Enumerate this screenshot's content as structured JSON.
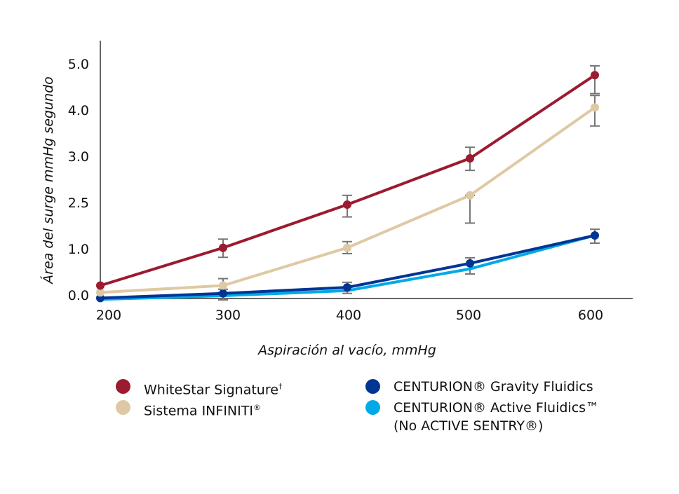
{
  "chart_data": {
    "type": "line",
    "xlabel": "Aspiración al vacío, mmHg",
    "ylabel": "Área del surge mmHg segundo",
    "x": [
      200,
      300,
      400,
      500,
      600
    ],
    "x_ticks": [
      "200",
      "300",
      "400",
      "500",
      "600"
    ],
    "y_ticks": [
      {
        "label": "0.0",
        "value": 0.0
      },
      {
        "label": "1.0",
        "value": 1.0
      },
      {
        "label": "2.5",
        "value": 2.5
      },
      {
        "label": "3.0",
        "value": 3.0
      },
      {
        "label": "4.0",
        "value": 4.0
      },
      {
        "label": "5.0",
        "value": 5.0
      }
    ],
    "grid": false,
    "legend_placement": "bottom",
    "series": [
      {
        "name": "WhiteStar Signature",
        "sup": "†",
        "color": "#9b1b30",
        "values": [
          0.25,
          1.1,
          2.5,
          3.0,
          4.8
        ],
        "error": [
          null,
          [
            0.86,
            1.38
          ],
          [
            2.1,
            2.6
          ],
          [
            2.87,
            3.24
          ],
          [
            4.4,
            5.15
          ]
        ]
      },
      {
        "name": "Sistema INFINITI",
        "sup": "®",
        "color": "#dfc9a4",
        "values": [
          0.1,
          0.25,
          1.1,
          2.6,
          4.1
        ],
        "error": [
          null,
          [
            0.1,
            0.4
          ],
          [
            0.94,
            1.3
          ],
          [
            1.9,
            2.6
          ],
          [
            3.7,
            4.36
          ]
        ]
      },
      {
        "name": "CENTURION® Gravity Fluidics",
        "sup": "",
        "color": "#003594",
        "values": [
          -0.02,
          0.08,
          0.21,
          0.73,
          1.5
        ],
        "error": [
          null,
          [
            -0.06,
            0.17
          ],
          [
            0.08,
            0.32
          ],
          [
            0.5,
            0.85
          ],
          [
            1.25,
            1.7
          ]
        ]
      },
      {
        "name": "CENTURION® Active Fluidics™",
        "sub": "(No ACTIVE SENTRY®)",
        "sup": "",
        "color": "#00a9e8",
        "values": [
          -0.05,
          0.03,
          0.14,
          0.61,
          1.5
        ],
        "error": [
          null,
          null,
          null,
          null,
          null
        ]
      }
    ]
  }
}
